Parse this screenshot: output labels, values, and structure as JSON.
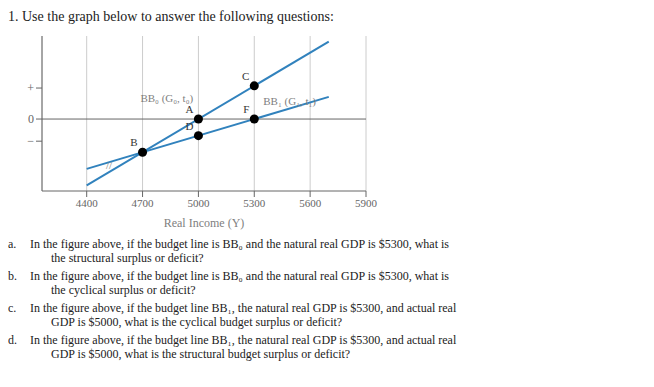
{
  "chart_data": {
    "type": "line",
    "title": "1.  Use the graph below to answer the following questions:",
    "xlabel": "Real Income (Y)",
    "xlim": [
      4160,
      5900
    ],
    "xticks": [
      4400,
      4700,
      5000,
      5300,
      5600,
      5900
    ],
    "ylim": [
      -0.65,
      0.75
    ],
    "yticks": [
      {
        "value": 0.28,
        "label": "+"
      },
      0,
      {
        "value": -0.2,
        "label": "−"
      }
    ],
    "grid": true,
    "series": [
      {
        "name": "BB₀ (G₀, t₀)",
        "x": [
          4400,
          5700
        ],
        "values": [
          -0.6,
          0.7
        ],
        "label_x": 4830,
        "label_y": 0.19
      },
      {
        "name": "BB₁ (G₁, t₁)",
        "x": [
          4400,
          5700
        ],
        "values": [
          -0.45,
          0.2
        ],
        "label_x": 5490,
        "label_y": 0.165
      }
    ],
    "points": {
      "type": "scatter",
      "marker": "circle",
      "labels": [
        "A",
        "B",
        "C",
        "D",
        "F"
      ],
      "x": [
        5000,
        4700,
        5300,
        5000,
        5300
      ],
      "values": [
        0,
        -0.3,
        0.3,
        -0.15,
        0
      ]
    },
    "hlines": [
      0
    ],
    "annotations": [
      {
        "text": "//",
        "x": 4520,
        "y": -0.415
      }
    ],
    "questions": [
      {
        "label": "a.",
        "text": "In the figure above, if the budget line is BB₀ and the natural real GDP is $5300, what is\n       the structural surplus or deficit?"
      },
      {
        "label": "b.",
        "text": "In the figure above, if the budget line is BB₀ and the natural real GDP is $5300, what is\n       the cyclical surplus or deficit?"
      },
      {
        "label": "c.",
        "text": "In the figure above, if the budget line BB₁, the natural real GDP is $5300, and actual real\n       GDP is $5000, what is the cyclical budget surplus or deficit?"
      },
      {
        "label": "d.",
        "text": "In the figure above, if the budget line BB₁, the natural real GDP is $5300, and actual real\n       GDP is $5000, what is the structural budget surplus or deficit?"
      }
    ]
  }
}
